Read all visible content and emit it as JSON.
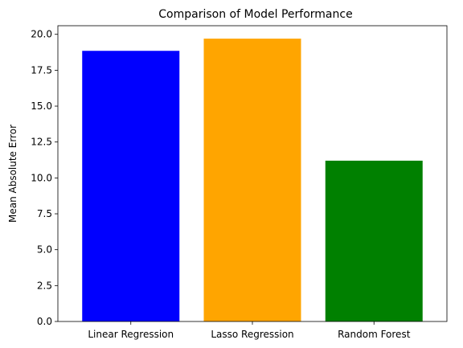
{
  "chart_data": {
    "type": "bar",
    "title": "Comparison of Model Performance",
    "xlabel": "",
    "ylabel": "Mean Absolute Error",
    "categories": [
      "Linear Regression",
      "Lasso Regression",
      "Random Forest"
    ],
    "values": [
      18.85,
      19.7,
      11.2
    ],
    "colors": [
      "#0000ff",
      "#ffa500",
      "#008000"
    ],
    "ylim": [
      0,
      20.6
    ],
    "yticks": [
      0.0,
      2.5,
      5.0,
      7.5,
      10.0,
      12.5,
      15.0,
      17.5,
      20.0
    ],
    "ytick_labels": [
      "0.0",
      "2.5",
      "5.0",
      "7.5",
      "10.0",
      "12.5",
      "15.0",
      "17.5",
      "20.0"
    ],
    "grid": false,
    "legend": "none"
  }
}
